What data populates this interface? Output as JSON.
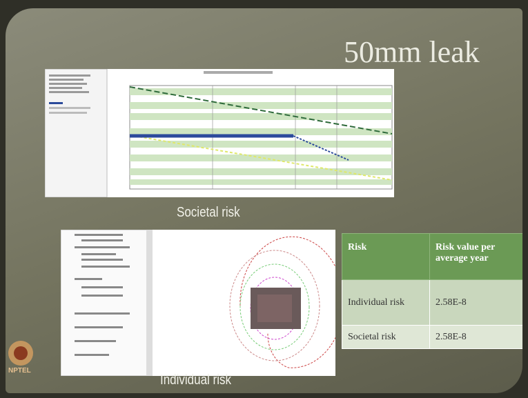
{
  "slide": {
    "title": "50mm leak",
    "captions": [
      "Societal risk",
      "Individual risk"
    ],
    "table": {
      "header": [
        "Risk",
        "Risk value per average year"
      ],
      "rows": [
        [
          "Individual risk",
          "2.58E-8"
        ],
        [
          "Societal risk",
          "2.58E-8"
        ]
      ]
    },
    "logo": "NPTEL"
  }
}
